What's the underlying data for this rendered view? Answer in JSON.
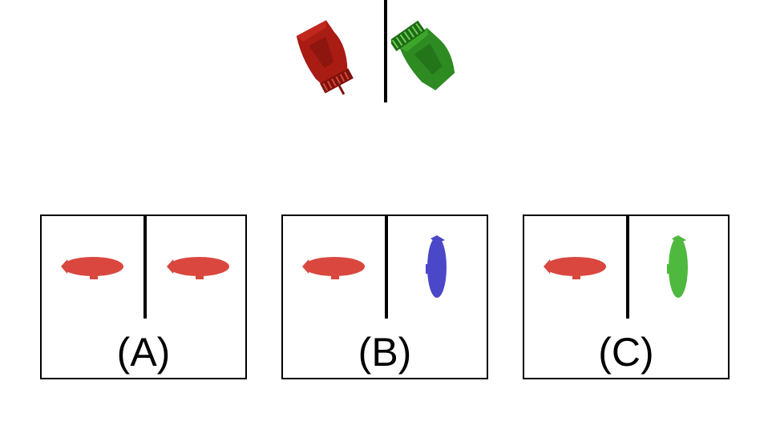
{
  "question": {
    "left_figure": {
      "icon": "grand-piano-icon",
      "color": "#a81c14"
    },
    "right_figure": {
      "icon": "grand-piano-icon",
      "color": "#2e8b22"
    }
  },
  "options": [
    {
      "label": "(A)",
      "left": {
        "icon": "blimp-icon",
        "color": "#d9473f",
        "orientation": "horizontal"
      },
      "right": {
        "icon": "blimp-icon",
        "color": "#d9473f",
        "orientation": "horizontal"
      }
    },
    {
      "label": "(B)",
      "left": {
        "icon": "blimp-icon",
        "color": "#d9473f",
        "orientation": "horizontal"
      },
      "right": {
        "icon": "blimp-icon",
        "color": "#4a47c8",
        "orientation": "vertical"
      }
    },
    {
      "label": "(C)",
      "left": {
        "icon": "blimp-icon",
        "color": "#d9473f",
        "orientation": "horizontal"
      },
      "right": {
        "icon": "blimp-icon",
        "color": "#4fb83e",
        "orientation": "vertical"
      }
    }
  ]
}
